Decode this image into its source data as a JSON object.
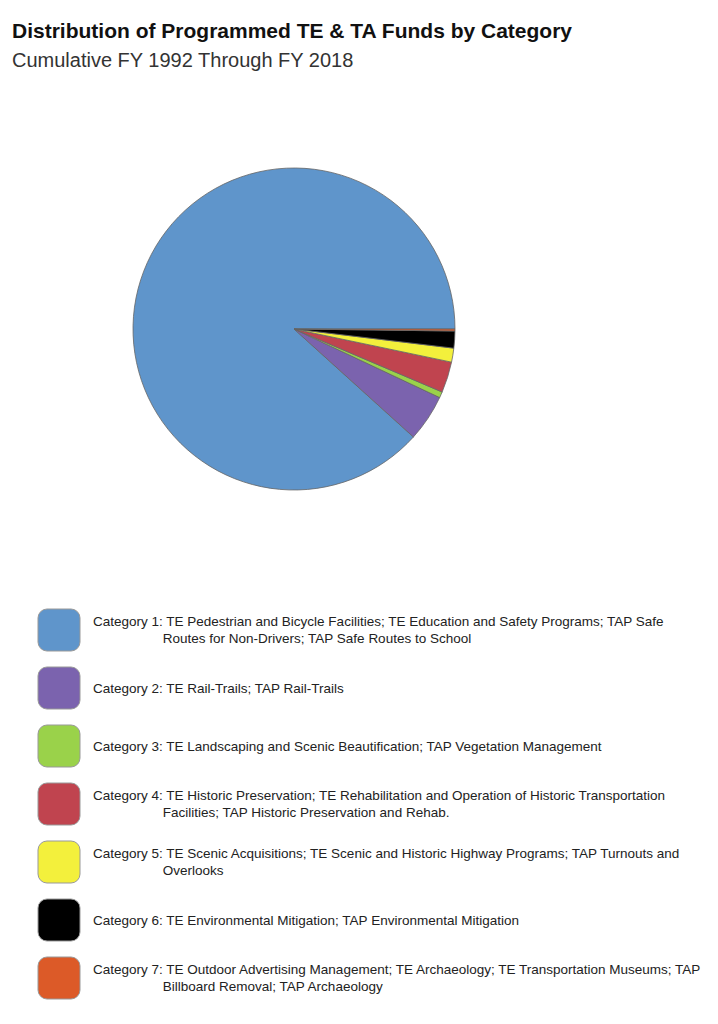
{
  "chart_data": {
    "type": "pie",
    "title": "Distribution of Programmed TE & TA Funds by Category",
    "subtitle": "Cumulative FY 1992 Through FY 2018",
    "categories": [
      "Category 1: TE Pedestrian and Bicycle Facilities; TE Education and Safety Programs; TAP Safe Routes for Non-Drivers; TAP Safe Routes to School",
      "Category 2: TE Rail-Trails; TAP Rail-Trails",
      "Category 3: TE Landscaping and Scenic Beautification; TAP Vegetation Management",
      "Category 4: TE Historic Preservation; TE Rehabilitation and Operation of Historic Transportation Facilities; TAP Historic Preservation and Rehab.",
      "Category 5: TE Scenic Acquisitions; TE Scenic and Historic Highway Programs; TAP Turnouts and Overlooks",
      "Category 6: TE Environmental Mitigation; TAP Environmental Mitigation",
      "Category 7: TE Outdoor Advertising Management; TE Archaeology; TE Transportation Museums; TAP Billboard Removal; TAP Archaeology"
    ],
    "values": [
      88.3,
      4.7,
      0.6,
      3.1,
      1.4,
      1.7,
      0.2
    ],
    "colors": [
      "#5f95cb",
      "#7b63ae",
      "#9ad24a",
      "#c0444f",
      "#f3f03c",
      "#000000",
      "#dc5a28"
    ],
    "legend": "bottom"
  }
}
